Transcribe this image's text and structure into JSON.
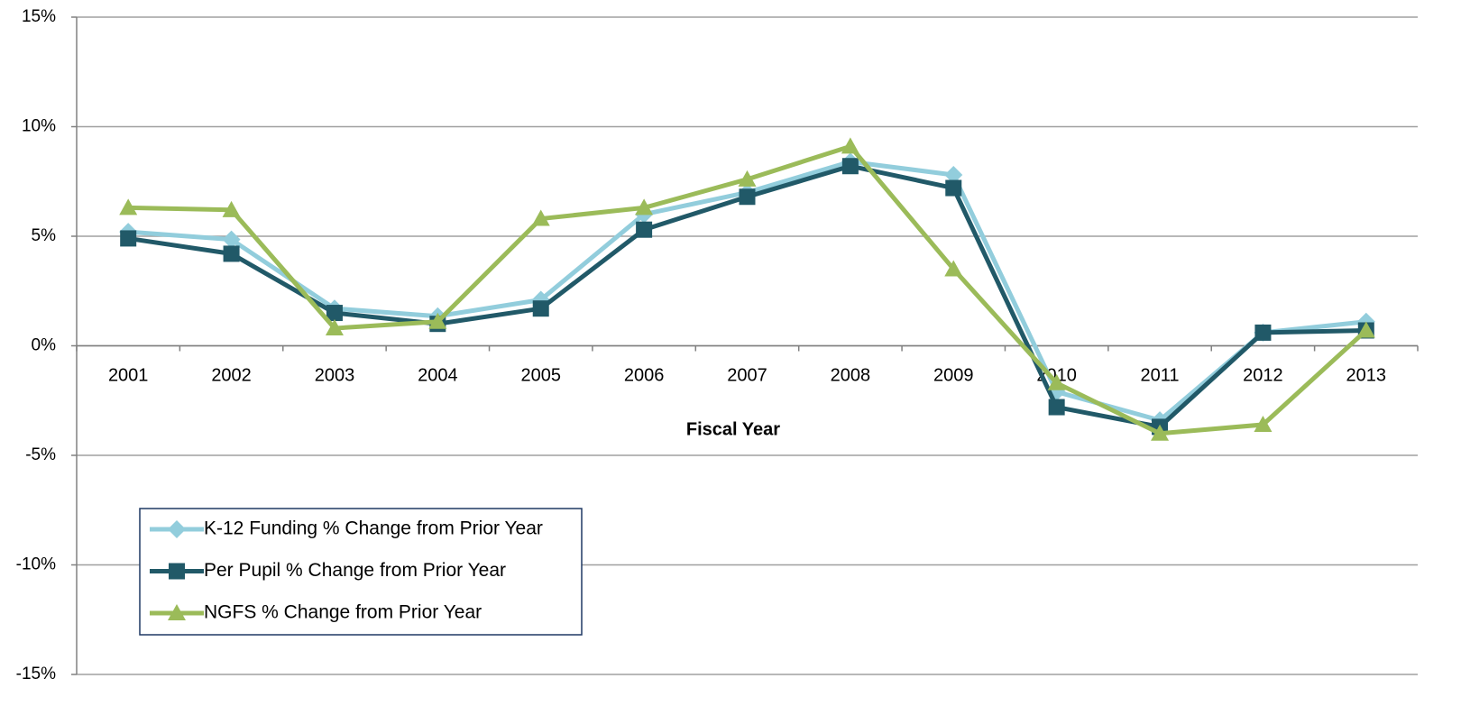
{
  "chart_data": {
    "type": "line",
    "x_label": "Fiscal Year",
    "categories": [
      "2001",
      "2002",
      "2003",
      "2004",
      "2005",
      "2006",
      "2007",
      "2008",
      "2009",
      "2010",
      "2011",
      "2012",
      "2013"
    ],
    "series": [
      {
        "name": "K-12 Funding % Change from Prior Year",
        "color": "#92cddc",
        "marker": "diamond",
        "values": [
          5.2,
          4.85,
          1.7,
          1.35,
          2.1,
          6.0,
          7.0,
          8.4,
          7.8,
          -2.1,
          -3.4,
          0.6,
          1.1
        ]
      },
      {
        "name": "Per Pupil % Change from Prior Year",
        "color": "#215968",
        "marker": "square",
        "values": [
          4.9,
          4.2,
          1.5,
          1.0,
          1.7,
          5.3,
          6.8,
          8.2,
          7.2,
          -2.8,
          -3.7,
          0.6,
          0.7
        ]
      },
      {
        "name": "NGFS % Change from Prior Year",
        "color": "#9bbb59",
        "marker": "triangle",
        "values": [
          6.3,
          6.2,
          0.8,
          1.1,
          5.8,
          6.3,
          7.6,
          9.1,
          3.5,
          -1.7,
          -4.0,
          -3.6,
          0.7
        ]
      }
    ],
    "ylim": [
      -15,
      15
    ],
    "yticks": [
      {
        "value": -15,
        "label": "-15%"
      },
      {
        "value": -10,
        "label": "-10%"
      },
      {
        "value": -5,
        "label": "-5%"
      },
      {
        "value": 0,
        "label": "0%"
      },
      {
        "value": 5,
        "label": "5%"
      },
      {
        "value": 10,
        "label": "10%"
      },
      {
        "value": 15,
        "label": "15%"
      }
    ],
    "grid": true,
    "legend": "lower left"
  }
}
